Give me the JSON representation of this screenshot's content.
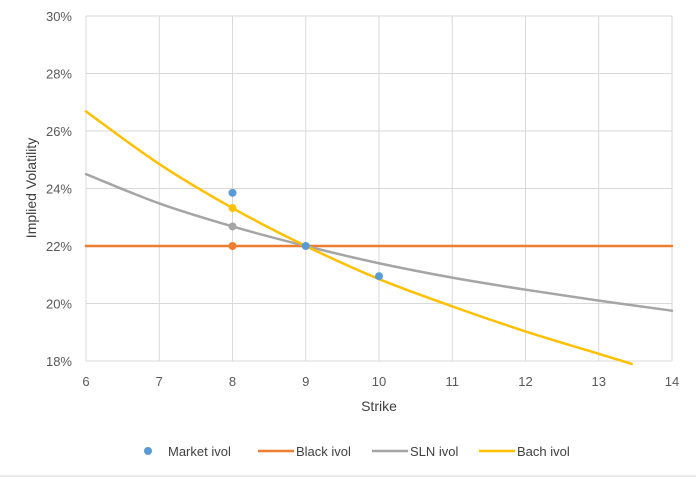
{
  "chart_data": {
    "type": "line",
    "title": "",
    "xlabel": "Strike",
    "ylabel": "Implied Volatility",
    "xlim": [
      6,
      14
    ],
    "ylim": [
      0.18,
      0.3
    ],
    "x_ticks": [
      "6",
      "7",
      "8",
      "9",
      "10",
      "11",
      "12",
      "13",
      "14"
    ],
    "y_ticks": [
      "18%",
      "20%",
      "22%",
      "24%",
      "26%",
      "28%",
      "30%"
    ],
    "grid": true,
    "legend_position": "bottom",
    "series": [
      {
        "name": "Market ivol",
        "kind": "markers",
        "color": "#5B9BD5",
        "points": [
          [
            8,
            0.2385
          ],
          [
            9,
            0.22
          ],
          [
            10,
            0.2095
          ]
        ]
      },
      {
        "name": "Black ivol",
        "kind": "line",
        "color": "#ED7D31",
        "points": [
          [
            6,
            0.22
          ],
          [
            14,
            0.22
          ]
        ],
        "markers": [
          [
            8,
            0.22
          ]
        ]
      },
      {
        "name": "SLN ivol",
        "kind": "line",
        "color": "#A5A5A5",
        "points": [
          [
            6,
            0.245
          ],
          [
            7,
            0.2348
          ],
          [
            8,
            0.2268
          ],
          [
            9,
            0.22
          ],
          [
            10,
            0.214
          ],
          [
            11,
            0.209
          ],
          [
            12,
            0.2048
          ],
          [
            13,
            0.201
          ],
          [
            14,
            0.1975
          ]
        ],
        "markers": [
          [
            8,
            0.2268
          ]
        ]
      },
      {
        "name": "Bach ivol",
        "kind": "line",
        "color": "#FFC000",
        "points": [
          [
            6,
            0.2668
          ],
          [
            7,
            0.2485
          ],
          [
            8,
            0.2332
          ],
          [
            9,
            0.22
          ],
          [
            10,
            0.2085
          ],
          [
            11,
            0.199
          ],
          [
            12,
            0.1903
          ],
          [
            13,
            0.1825
          ],
          [
            13.45,
            0.179
          ]
        ],
        "markers": [
          [
            8,
            0.2332
          ]
        ]
      }
    ]
  }
}
